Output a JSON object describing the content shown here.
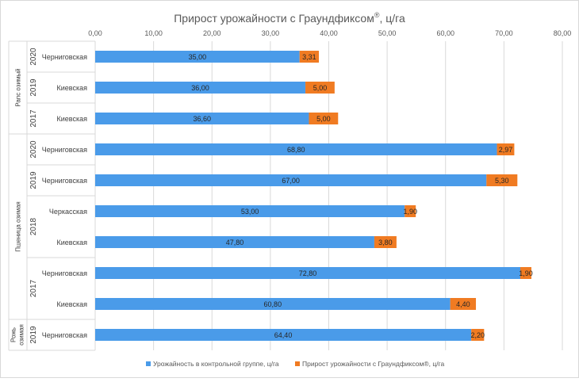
{
  "chart_data": {
    "type": "bar",
    "orientation": "horizontal",
    "stacked": true,
    "title": "Прирост урожайности с Граундфиксом",
    "title_sup": "®",
    "title_suffix": ", ц/га",
    "xlim": [
      0,
      80
    ],
    "x_ticks": [
      "0,00",
      "10,00",
      "20,00",
      "30,00",
      "40,00",
      "50,00",
      "60,00",
      "70,00",
      "80,00"
    ],
    "x_tick_values": [
      0,
      10,
      20,
      30,
      40,
      50,
      60,
      70,
      80
    ],
    "grid": true,
    "legend_position": "bottom",
    "groups": [
      {
        "crop": "Рапс озимый",
        "years": [
          {
            "year": "2020",
            "regions": [
              "Черниговская"
            ]
          },
          {
            "year": "2019",
            "regions": [
              "Киевская"
            ]
          },
          {
            "year": "2017",
            "regions": [
              "Киевская"
            ]
          }
        ]
      },
      {
        "crop": "Пшеница озимая",
        "years": [
          {
            "year": "2020",
            "regions": [
              "Черниговская"
            ]
          },
          {
            "year": "2019",
            "regions": [
              "Черниговская"
            ]
          },
          {
            "year": "2018",
            "regions": [
              "Черкасская",
              "Киевская"
            ]
          },
          {
            "year": "2017",
            "regions": [
              "Черниговская",
              "Киевская"
            ]
          }
        ]
      },
      {
        "crop": "Рожь озимая",
        "years": [
          {
            "year": "2019",
            "regions": [
              "Черниговская"
            ]
          }
        ]
      }
    ],
    "series": [
      {
        "name": "Урожайность в контрольной группе, ц/га",
        "color": "#4a9be9",
        "values": [
          35.0,
          36.0,
          36.6,
          68.8,
          67.0,
          53.0,
          47.8,
          72.8,
          60.8,
          64.4
        ],
        "labels": [
          "35,00",
          "36,00",
          "36,60",
          "68,80",
          "67,00",
          "53,00",
          "47,80",
          "72,80",
          "60,80",
          "64,40"
        ]
      },
      {
        "name": "Прирост урожайности с Граундфиксом®, ц/га",
        "color": "#f07b22",
        "values": [
          3.31,
          5.0,
          5.0,
          2.97,
          5.3,
          1.9,
          3.8,
          1.9,
          4.4,
          2.2
        ],
        "labels": [
          "3,31",
          "5,00",
          "5,00",
          "2,97",
          "5,30",
          "1,90",
          "3,80",
          "1,90",
          "4,40",
          "2,20"
        ]
      }
    ]
  }
}
